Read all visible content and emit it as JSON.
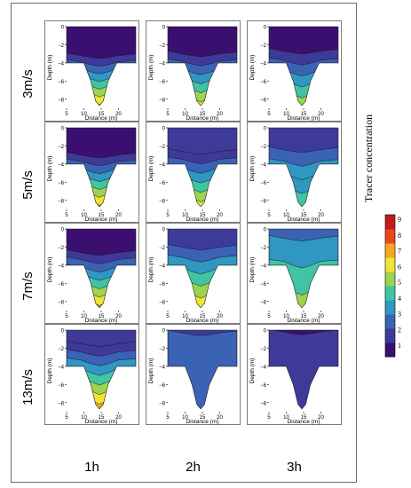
{
  "rows": [
    "3m/s",
    "5m/s",
    "7m/s",
    "13m/s"
  ],
  "columns": [
    "1h",
    "2h",
    "3h"
  ],
  "panel_axes": {
    "xlabel": "Distance (m)",
    "ylabel": "Depth (m)",
    "xticks": [
      "5",
      "10",
      "15",
      "20"
    ],
    "yticks": [
      "0",
      "−2",
      "−4",
      "−6",
      "−8"
    ],
    "xlim": [
      5,
      25
    ],
    "ylim": [
      -9,
      0
    ]
  },
  "colorbar": {
    "title": "Tracer concentration",
    "ticks": [
      "9",
      "8",
      "7",
      "6",
      "5",
      "4",
      "3",
      "2",
      "1"
    ],
    "range": [
      0,
      9
    ],
    "colors": [
      "#3b0f6f",
      "#3e3a99",
      "#3a62b5",
      "#2f97c2",
      "#41c4a4",
      "#9cd44f",
      "#eee535",
      "#f8a51f",
      "#e9481c",
      "#c41a1a"
    ]
  },
  "chart_data": {
    "type": "contour",
    "description_of_structure": "4 rows (wind speed) x 3 columns (elapsed time); filled contours of tracer concentration vs distance and depth",
    "panels": [
      {
        "row": "3m/s",
        "col": "1h",
        "bottom_conc": 8.5,
        "plume_depth": 3.2,
        "surface_conc": 0.5
      },
      {
        "row": "3m/s",
        "col": "2h",
        "bottom_conc": 8.0,
        "plume_depth": 3.0,
        "surface_conc": 0.6
      },
      {
        "row": "3m/s",
        "col": "3h",
        "bottom_conc": 6.8,
        "plume_depth": 2.7,
        "surface_conc": 0.8
      },
      {
        "row": "5m/s",
        "col": "1h",
        "bottom_conc": 8.5,
        "plume_depth": 3.0,
        "surface_conc": 0.6
      },
      {
        "row": "5m/s",
        "col": "2h",
        "bottom_conc": 7.8,
        "plume_depth": 2.6,
        "surface_conc": 1.0
      },
      {
        "row": "5m/s",
        "col": "3h",
        "bottom_conc": 5.8,
        "plume_depth": 2.4,
        "surface_conc": 1.2
      },
      {
        "row": "7m/s",
        "col": "1h",
        "bottom_conc": 8.5,
        "plume_depth": 2.6,
        "surface_conc": 0.8
      },
      {
        "row": "7m/s",
        "col": "2h",
        "bottom_conc": 7.0,
        "plume_depth": 2.0,
        "surface_conc": 1.5
      },
      {
        "row": "7m/s",
        "col": "3h",
        "bottom_conc": 5.0,
        "plume_depth": 1.0,
        "surface_conc": 2.0
      },
      {
        "row": "13m/s",
        "col": "1h",
        "bottom_conc": 8.5,
        "plume_depth": 1.5,
        "surface_conc": 1.0
      },
      {
        "row": "13m/s",
        "col": "2h",
        "bottom_conc": 2.3,
        "plume_depth": 0.3,
        "surface_conc": 1.8
      },
      {
        "row": "13m/s",
        "col": "3h",
        "bottom_conc": 1.2,
        "plume_depth": 0.2,
        "surface_conc": 0.6
      }
    ]
  }
}
